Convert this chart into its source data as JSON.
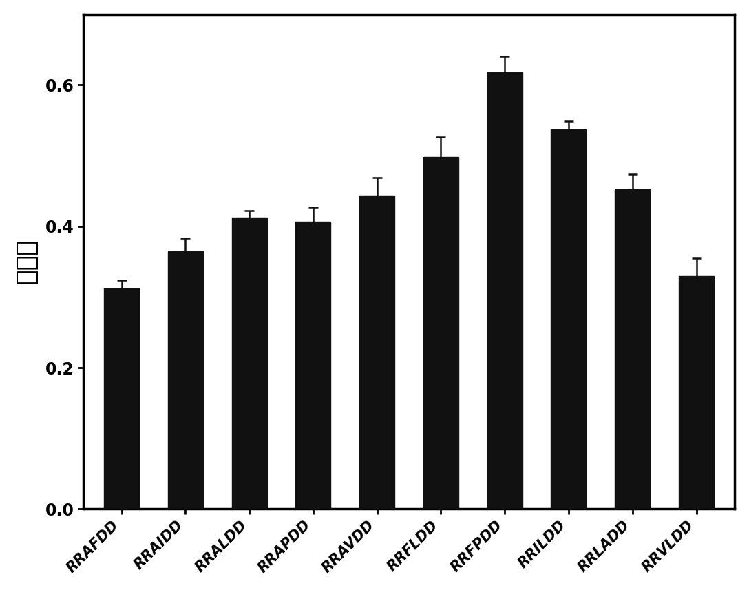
{
  "categories": [
    "RRAFDD",
    "RRAIDD",
    "RRALDD",
    "RRAPDD",
    "RRAVDD",
    "RRFLDD",
    "RRFPDD",
    "RRILDD",
    "RRLADD",
    "RRVLDD"
  ],
  "values": [
    0.312,
    0.365,
    0.412,
    0.407,
    0.444,
    0.498,
    0.618,
    0.537,
    0.452,
    0.33
  ],
  "errors": [
    0.012,
    0.018,
    0.01,
    0.02,
    0.025,
    0.028,
    0.022,
    0.012,
    0.022,
    0.025
  ],
  "bar_color": "#111111",
  "error_color": "#111111",
  "ylabel": "吸光度",
  "ylim": [
    0.0,
    0.7
  ],
  "yticks": [
    0.0,
    0.2,
    0.4,
    0.6
  ],
  "background_color": "#ffffff",
  "bar_width": 0.55,
  "ylabel_fontsize": 26,
  "tick_fontsize": 15,
  "ytick_fontsize": 17
}
